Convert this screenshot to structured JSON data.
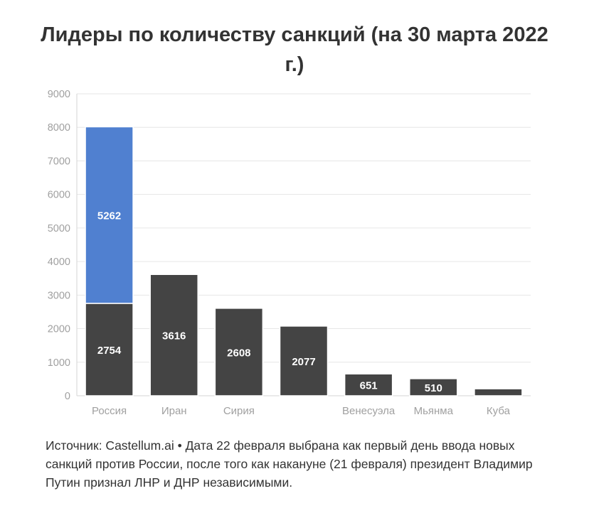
{
  "chart_data": {
    "type": "bar",
    "stacked": true,
    "title": "Лидеры по количеству санкций (на 30 марта 2022 г.)",
    "categories": [
      "Россия",
      "Иран",
      "Сирия",
      "",
      "Венесуэла",
      "Мьянма",
      "Куба"
    ],
    "series": [
      {
        "values": [
          2754,
          3616,
          2608,
          2077,
          651,
          510,
          208
        ],
        "labels": [
          "2754",
          "3616",
          "2608",
          "2077",
          "651",
          "510",
          ""
        ]
      },
      {
        "values": [
          5262,
          0,
          0,
          0,
          0,
          0,
          0
        ],
        "labels": [
          "5262",
          "",
          "",
          "",
          "",
          "",
          ""
        ]
      }
    ],
    "colors": {
      "base": "#444444",
      "added": "#5080d0",
      "grid": "#e6e6e6",
      "tick": "#a0a0a0"
    },
    "ylim": [
      0,
      9000
    ],
    "yticks": [
      "0",
      "1000",
      "2000",
      "3000",
      "4000",
      "5000",
      "6000",
      "7000",
      "8000",
      "9000"
    ],
    "grid": true,
    "legend": "none"
  },
  "footer": {
    "text": "Источник: Castellum.ai • Дата 22 февраля выбрана как первый день ввода новых санкций против России, после того как накануне (21 февраля) президент Владимир Путин признал ЛНР и ДНР независимыми."
  }
}
